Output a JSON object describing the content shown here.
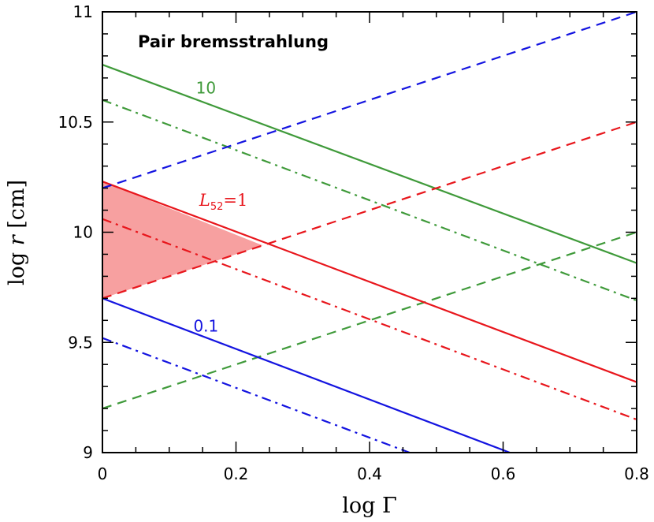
{
  "chart_data": {
    "type": "line",
    "title": "Pair bremsstrahlung",
    "xlabel": "log Γ",
    "ylabel_parts": [
      "log ",
      "r",
      " [cm]"
    ],
    "xlim": [
      0,
      0.8
    ],
    "ylim": [
      9,
      11
    ],
    "xticks": [
      0,
      0.2,
      0.4,
      0.6,
      0.8
    ],
    "xtick_labels": [
      "0",
      "0.2",
      "0.4",
      "0.6",
      "0.8"
    ],
    "yticks": [
      9,
      9.5,
      10,
      10.5,
      11
    ],
    "ytick_labels": [
      "9",
      "9.5",
      "10",
      "10.5",
      "11"
    ],
    "grid": false,
    "series": [
      {
        "color": "#3f9a3a",
        "style": "solid",
        "x": [
          0,
          0.8
        ],
        "y": [
          10.76,
          9.86
        ]
      },
      {
        "color": "#3f9a3a",
        "style": "dashdot",
        "x": [
          0,
          0.8
        ],
        "y": [
          10.6,
          9.69
        ]
      },
      {
        "color": "#3f9a3a",
        "style": "dashed",
        "x": [
          0,
          0.8
        ],
        "y": [
          9.2,
          10.0
        ]
      },
      {
        "color": "#e8161c",
        "style": "solid",
        "x": [
          0,
          0.8
        ],
        "y": [
          10.23,
          9.32
        ]
      },
      {
        "color": "#e8161c",
        "style": "dashdot",
        "x": [
          0,
          0.8
        ],
        "y": [
          10.06,
          9.15
        ]
      },
      {
        "color": "#e8161c",
        "style": "dashed",
        "x": [
          0,
          0.8
        ],
        "y": [
          9.7,
          10.5
        ]
      },
      {
        "color": "#1414e0",
        "style": "solid",
        "x": [
          0,
          0.61
        ],
        "y": [
          9.7,
          9.0
        ]
      },
      {
        "color": "#1414e0",
        "style": "dashdot",
        "x": [
          0,
          0.46
        ],
        "y": [
          9.52,
          9.0
        ]
      },
      {
        "color": "#1414e0",
        "style": "dashed",
        "x": [
          0,
          0.8
        ],
        "y": [
          10.2,
          11.0
        ]
      }
    ],
    "shaded_region": {
      "color": "#f7a0a0",
      "x": [
        0,
        0,
        0.24
      ],
      "y": [
        10.23,
        9.7,
        9.94
      ]
    },
    "annotations": [
      {
        "text": "10",
        "color": "#3f9a3a",
        "x": 0.155,
        "y": 10.63
      },
      {
        "text": "0.1",
        "color": "#1414e0",
        "x": 0.155,
        "y": 9.55
      }
    ],
    "luminosity_label": {
      "prefix": "L",
      "subscript": "52",
      "suffix": "=1",
      "color": "#e8161c",
      "x": 0.145,
      "y": 10.12
    }
  }
}
